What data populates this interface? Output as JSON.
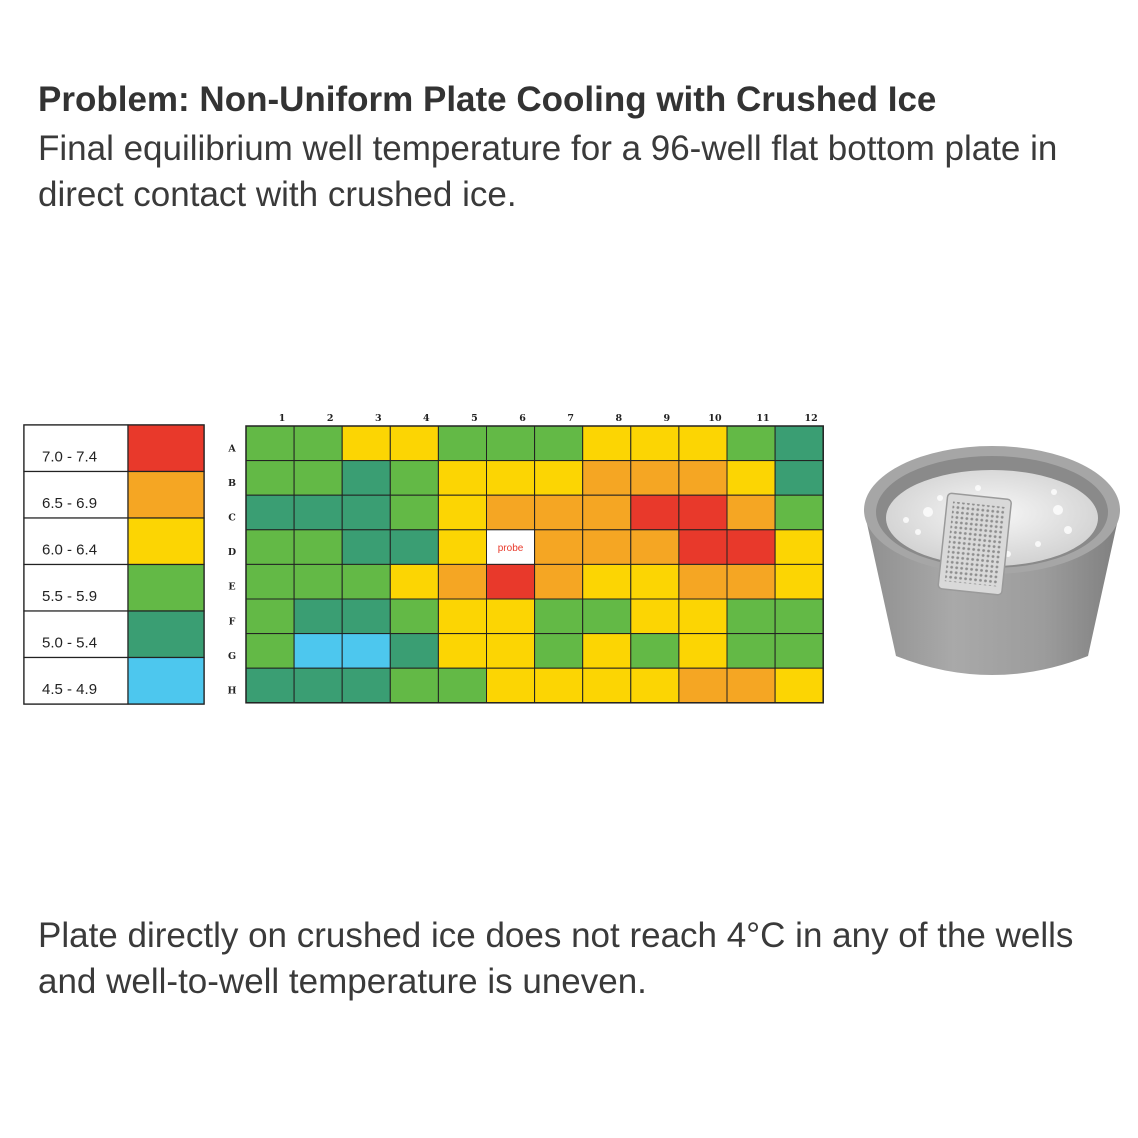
{
  "header": {
    "title": "Problem: Non-Uniform Plate Cooling with Crushed Ice",
    "subtitle": "Final equilibrium well temperature for a 96-well flat bottom plate in direct contact with crushed ice."
  },
  "footer": {
    "text": "Plate directly on crushed ice does not reach 4°C in any of the wells and well-to-well temperature is uneven."
  },
  "colors": {
    "red": "#e8392b",
    "orange": "#f5a623",
    "yellow": "#fcd503",
    "green": "#63b946",
    "teal": "#3a9e73",
    "blue": "#4dc7ee",
    "probe_cell": "#ffffff",
    "probe_text": "#e8392b"
  },
  "chart_data": {
    "type": "heatmap",
    "legend": [
      {
        "label": "7.0 - 7.4",
        "color": "red"
      },
      {
        "label": "6.5 - 6.9",
        "color": "orange"
      },
      {
        "label": "6.0 - 6.4",
        "color": "yellow"
      },
      {
        "label": "5.5 - 5.9",
        "color": "green"
      },
      {
        "label": "5.0 - 5.4",
        "color": "teal"
      },
      {
        "label": "4.5 - 4.9",
        "color": "blue"
      }
    ],
    "columns": [
      "1",
      "2",
      "3",
      "4",
      "5",
      "6",
      "7",
      "8",
      "9",
      "10",
      "11",
      "12"
    ],
    "rows": [
      "A",
      "B",
      "C",
      "D",
      "E",
      "F",
      "G",
      "H"
    ],
    "cells": [
      [
        "5.5 - 5.9",
        "5.5 - 5.9",
        "6.0 - 6.4",
        "6.0 - 6.4",
        "5.5 - 5.9",
        "5.5 - 5.9",
        "5.5 - 5.9",
        "6.0 - 6.4",
        "6.0 - 6.4",
        "6.0 - 6.4",
        "5.5 - 5.9",
        "5.0 - 5.4"
      ],
      [
        "5.5 - 5.9",
        "5.5 - 5.9",
        "5.0 - 5.4",
        "5.5 - 5.9",
        "6.0 - 6.4",
        "6.0 - 6.4",
        "6.0 - 6.4",
        "6.5 - 6.9",
        "6.5 - 6.9",
        "6.5 - 6.9",
        "6.0 - 6.4",
        "5.0 - 5.4"
      ],
      [
        "5.0 - 5.4",
        "5.0 - 5.4",
        "5.0 - 5.4",
        "5.5 - 5.9",
        "6.0 - 6.4",
        "6.5 - 6.9",
        "6.5 - 6.9",
        "6.5 - 6.9",
        "7.0 - 7.4",
        "7.0 - 7.4",
        "6.5 - 6.9",
        "5.5 - 5.9"
      ],
      [
        "5.5 - 5.9",
        "5.5 - 5.9",
        "5.0 - 5.4",
        "5.0 - 5.4",
        "6.0 - 6.4",
        "probe",
        "6.5 - 6.9",
        "6.5 - 6.9",
        "6.5 - 6.9",
        "7.0 - 7.4",
        "7.0 - 7.4",
        "6.0 - 6.4"
      ],
      [
        "5.5 - 5.9",
        "5.5 - 5.9",
        "5.5 - 5.9",
        "6.0 - 6.4",
        "6.5 - 6.9",
        "7.0 - 7.4",
        "6.5 - 6.9",
        "6.0 - 6.4",
        "6.0 - 6.4",
        "6.5 - 6.9",
        "6.5 - 6.9",
        "6.0 - 6.4"
      ],
      [
        "5.5 - 5.9",
        "5.0 - 5.4",
        "5.0 - 5.4",
        "5.5 - 5.9",
        "6.0 - 6.4",
        "6.0 - 6.4",
        "5.5 - 5.9",
        "5.5 - 5.9",
        "6.0 - 6.4",
        "6.0 - 6.4",
        "5.5 - 5.9",
        "5.5 - 5.9"
      ],
      [
        "5.5 - 5.9",
        "4.5 - 4.9",
        "4.5 - 4.9",
        "5.0 - 5.4",
        "6.0 - 6.4",
        "6.0 - 6.4",
        "5.5 - 5.9",
        "6.0 - 6.4",
        "5.5 - 5.9",
        "6.0 - 6.4",
        "5.5 - 5.9",
        "5.5 - 5.9"
      ],
      [
        "5.0 - 5.4",
        "5.0 - 5.4",
        "5.0 - 5.4",
        "5.5 - 5.9",
        "5.5 - 5.9",
        "6.0 - 6.4",
        "6.0 - 6.4",
        "6.0 - 6.4",
        "6.0 - 6.4",
        "6.5 - 6.9",
        "6.5 - 6.9",
        "6.0 - 6.4"
      ]
    ],
    "probe": {
      "row": "D",
      "column": "6",
      "label": "probe"
    }
  },
  "image": {
    "icon": "ice-bucket-with-plate-icon"
  }
}
